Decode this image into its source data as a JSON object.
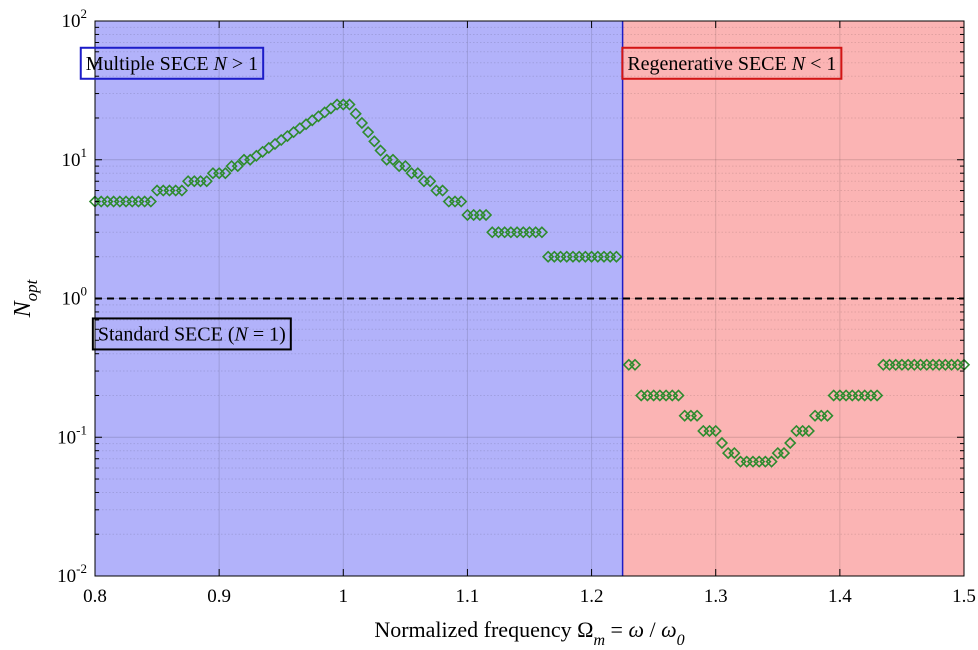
{
  "chart_data": {
    "type": "scatter",
    "title": "",
    "xlabel": "Normalized frequency",
    "xlabel_parts": [
      "Normalized frequency ",
      "Ω",
      "m",
      " = ",
      "ω",
      " / ",
      "ω",
      "0"
    ],
    "ylabel": "N",
    "ylabel_sub": "opt",
    "xlim": [
      0.8,
      1.5
    ],
    "ylim": [
      0.01,
      100
    ],
    "yscale": "log",
    "grid": true,
    "x_ticks": [
      0.8,
      0.9,
      1.0,
      1.1,
      1.2,
      1.3,
      1.4,
      1.5
    ],
    "x_tick_labels": [
      "0.8",
      "0.9",
      "1",
      "1.1",
      "1.2",
      "1.3",
      "1.4",
      "1.5"
    ],
    "y_ticks": [
      0.01,
      0.1,
      1,
      10,
      100
    ],
    "y_tick_bases": [
      "10",
      "10",
      "10",
      "10",
      "10"
    ],
    "y_tick_exponents": [
      "-2",
      "-1",
      "0",
      "1",
      "2"
    ],
    "regions": [
      {
        "x_from": 0.8,
        "x_to": 1.225,
        "color": "#b2b2fa",
        "border": "#1c1cc8"
      },
      {
        "x_from": 1.225,
        "x_to": 1.5,
        "color": "#fbb4b4",
        "border": "#1c1cc8"
      }
    ],
    "reference_line": {
      "y": 1,
      "style": "dashed",
      "color": "#000000"
    },
    "annotations": [
      {
        "parts": [
          "Multiple SECE ",
          "N",
          " > 1"
        ],
        "x": 0.862,
        "y": 50,
        "border": "#1c1cc8"
      },
      {
        "parts": [
          "Standard SECE (",
          "N",
          " = 1)"
        ],
        "x": 0.878,
        "y": 0.56,
        "border": "#000000"
      },
      {
        "parts": [
          "Regenerative SECE ",
          "N",
          " < 1"
        ],
        "x": 1.313,
        "y": 50,
        "border": "#d21414"
      }
    ],
    "marker": {
      "shape": "diamond",
      "color": "#2e8b2e"
    },
    "steps": [
      {
        "x_from": 0.8,
        "x_to": 0.845,
        "y": 5
      },
      {
        "x_from": 0.85,
        "x_to": 0.87,
        "y": 6
      },
      {
        "x_from": 0.875,
        "x_to": 0.89,
        "y": 7
      },
      {
        "x_from": 0.895,
        "x_to": 0.905,
        "y": 8
      },
      {
        "x_from": 0.91,
        "x_to": 0.915,
        "y": 9
      },
      {
        "x_from": 0.92,
        "x_to": 0.925,
        "y": 10
      },
      {
        "x_from": 1.035,
        "x_to": 1.04,
        "y": 10
      },
      {
        "x_from": 1.045,
        "x_to": 1.05,
        "y": 9
      },
      {
        "x_from": 1.055,
        "x_to": 1.06,
        "y": 8
      },
      {
        "x_from": 1.065,
        "x_to": 1.07,
        "y": 7
      },
      {
        "x_from": 1.075,
        "x_to": 1.08,
        "y": 6
      },
      {
        "x_from": 1.085,
        "x_to": 1.095,
        "y": 5
      },
      {
        "x_from": 1.1,
        "x_to": 1.115,
        "y": 4
      },
      {
        "x_from": 1.12,
        "x_to": 1.16,
        "y": 3
      },
      {
        "x_from": 1.165,
        "x_to": 1.22,
        "y": 2
      },
      {
        "x_from": 1.23,
        "x_to": 1.235,
        "y": 0.333
      },
      {
        "x_from": 1.24,
        "x_to": 1.27,
        "y": 0.2
      },
      {
        "x_from": 1.275,
        "x_to": 1.285,
        "y": 0.143
      },
      {
        "x_from": 1.29,
        "x_to": 1.3,
        "y": 0.111
      },
      {
        "x_from": 1.305,
        "x_to": 1.305,
        "y": 0.0909
      },
      {
        "x_from": 1.31,
        "x_to": 1.315,
        "y": 0.0769
      },
      {
        "x_from": 1.32,
        "x_to": 1.345,
        "y": 0.0667
      },
      {
        "x_from": 1.35,
        "x_to": 1.355,
        "y": 0.0769
      },
      {
        "x_from": 1.36,
        "x_to": 1.36,
        "y": 0.0909
      },
      {
        "x_from": 1.365,
        "x_to": 1.375,
        "y": 0.111
      },
      {
        "x_from": 1.38,
        "x_to": 1.39,
        "y": 0.143
      },
      {
        "x_from": 1.395,
        "x_to": 1.43,
        "y": 0.2
      },
      {
        "x_from": 1.435,
        "x_to": 1.5,
        "y": 0.333
      }
    ],
    "peak": {
      "x_from": 0.925,
      "x_to": 1.035,
      "x_peak": 0.995,
      "x_peak_end": 1.005,
      "y_start": 10,
      "y_peak": 25,
      "y_end": 10,
      "step": 0.005
    }
  }
}
